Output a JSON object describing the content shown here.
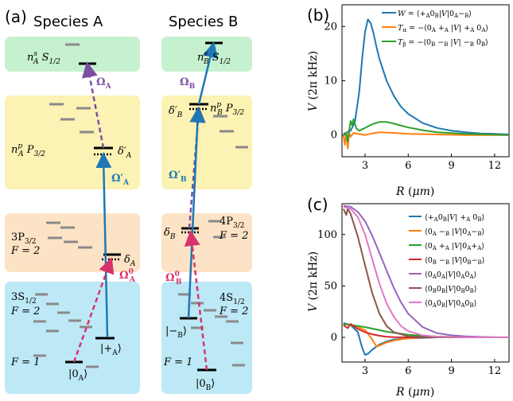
{
  "panel_labels": {
    "a": "(a)",
    "b": "(b)",
    "c": "(c)"
  },
  "species": {
    "A": {
      "title": "Species A",
      "rydberg_S": "n^s_A S_{1/2}",
      "rydberg_P": "n^p_A P_{3/2}",
      "p_state_line1": "3P_{3/2}",
      "p_state_line2": "F = 2",
      "s_state_line1": "3S_{1/2}",
      "s_state_line2": "F = 2",
      "f1_label": "F = 1",
      "ket_plus": "|+_A⟩",
      "ket_zero": "|0_A⟩",
      "omega_ryd": "Ω_A",
      "omega_prime": "Ω′_A",
      "omega_zero": "Ω^0_A",
      "delta_prime": "δ′_A",
      "delta": "δ_A",
      "colors": {
        "rydberg_S": "#c6f1cf",
        "rydberg_P": "#fbf2b3",
        "p_state": "#fde3c5",
        "s_state": "#bde8f5"
      }
    },
    "B": {
      "title": "Species B",
      "rydberg_S": "n^s_B S_{1/2}",
      "rydberg_P": "n^p_B P_{3/2}",
      "p_state_line1": "4P_{3/2}",
      "p_state_line2": "F = 2",
      "s_state_line1": "4S_{1/2}",
      "s_state_line2": "F = 2",
      "f1_label": "F = 1",
      "ket_minus": "|−_B⟩",
      "ket_zero": "|0_B⟩",
      "omega_ryd": "Ω_B",
      "omega_prime": "Ω′_B",
      "omega_zero": "Ω^0_B",
      "delta_prime": "δ′_B",
      "delta": "δ_B"
    }
  },
  "colors": {
    "blue": "#1f77b4",
    "purple": "#7b4fa3",
    "magenta": "#d6336c",
    "orange": "#ff7f0e",
    "green": "#2ca02c",
    "red": "#d62728",
    "violet": "#9467bd",
    "brown": "#8c564b",
    "pink": "#e377c2"
  },
  "chart_data": [
    {
      "panel": "(b)",
      "type": "line",
      "xlabel": "R (μm)",
      "ylabel": "V (2π kHz)",
      "xlim": [
        1.4,
        13
      ],
      "ylim": [
        -4,
        24
      ],
      "xticks": [
        "3",
        "6",
        "9",
        "12"
      ],
      "yticks": [
        "0",
        "10",
        "20"
      ],
      "legend": "top-right",
      "series": [
        {
          "name": "W = ⟨+_A0_B|V|0_A−_B⟩",
          "color": "#1f77b4",
          "x": [
            1.5,
            2.0,
            2.3,
            2.6,
            2.8,
            3.0,
            3.2,
            3.4,
            3.6,
            3.8,
            4.0,
            4.5,
            5.0,
            5.5,
            6.0,
            7.0,
            8.0,
            9.0,
            10.0,
            11.0,
            12.0,
            13.0
          ],
          "y": [
            0.2,
            0.8,
            2.5,
            8.0,
            14.0,
            19.0,
            21.3,
            20.6,
            18.6,
            16.2,
            14.0,
            10.0,
            7.2,
            5.2,
            3.9,
            2.2,
            1.3,
            0.8,
            0.5,
            0.3,
            0.2,
            0.1
          ]
        },
        {
          "name": "T_α = −⟨0_A +_A|V|+_A 0_A⟩",
          "color": "#ff7f0e",
          "x": [
            1.5,
            1.6,
            1.7,
            1.8,
            1.9,
            2.0,
            2.2,
            2.5,
            3.0,
            3.5,
            4.0,
            5.0,
            6.0,
            8.0,
            10.0,
            13.0
          ],
          "y": [
            0.0,
            -1.8,
            0.5,
            -2.5,
            0.4,
            -0.3,
            0.4,
            0.2,
            0.0,
            0.3,
            0.5,
            0.4,
            0.2,
            0.1,
            0.0,
            0.0
          ]
        },
        {
          "name": "T_β = −⟨0_B −_B|V|−_B 0_B⟩",
          "color": "#2ca02c",
          "x": [
            1.5,
            1.7,
            1.8,
            1.9,
            2.0,
            2.1,
            2.2,
            2.4,
            2.6,
            3.0,
            3.5,
            4.0,
            4.5,
            5.0,
            6.0,
            7.0,
            8.0,
            10.0,
            13.0
          ],
          "y": [
            0.0,
            0.3,
            -1.2,
            1.0,
            2.6,
            1.8,
            2.9,
            1.2,
            0.8,
            1.3,
            2.0,
            2.4,
            2.4,
            2.1,
            1.4,
            0.9,
            0.5,
            0.2,
            0.0
          ]
        }
      ]
    },
    {
      "panel": "(c)",
      "type": "line",
      "xlabel": "R (μm)",
      "ylabel": "V (2π kHz)",
      "xlim": [
        1.4,
        13
      ],
      "ylim": [
        -24,
        130
      ],
      "xticks": [
        "3",
        "6",
        "9",
        "12"
      ],
      "yticks": [
        "0",
        "50",
        "100"
      ],
      "legend": "top-right",
      "series": [
        {
          "name": "⟨+_A0_B|V|+_A0_B⟩",
          "color": "#1f77b4",
          "x": [
            1.5,
            2.0,
            2.5,
            2.8,
            3.0,
            3.2,
            3.5,
            4.0,
            4.5,
            5.0,
            6.0,
            7.0,
            8.0,
            10.0,
            13.0
          ],
          "y": [
            14,
            12,
            5,
            -10,
            -17,
            -16,
            -12,
            -7,
            -4,
            -2,
            -1,
            -0.5,
            0,
            0,
            0
          ]
        },
        {
          "name": "⟨0_A−_B|V|0_A−_B⟩",
          "color": "#ff7f0e",
          "x": [
            1.5,
            2.0,
            2.5,
            3.0,
            3.5,
            3.8,
            4.0,
            4.5,
            5.0,
            6.0,
            7.0,
            8.0,
            10.0,
            13.0
          ],
          "y": [
            13,
            12,
            10,
            7,
            -2,
            -9,
            -8,
            -5,
            -3,
            -1,
            0,
            0,
            0,
            0
          ]
        },
        {
          "name": "⟨0_A+_A|V|0_A+_A⟩",
          "color": "#2ca02c",
          "x": [
            1.5,
            2.0,
            2.5,
            3.0,
            3.5,
            4.0,
            4.5,
            5.0,
            6.0,
            7.0,
            8.0,
            10.0,
            13.0
          ],
          "y": [
            13,
            12,
            11,
            10,
            8.5,
            7,
            5.5,
            4.5,
            2.5,
            1.5,
            0.8,
            0.3,
            0.1
          ]
        },
        {
          "name": "⟨0_B−_B|V|0_B−_B⟩",
          "color": "#d62728",
          "x": [
            1.5,
            1.8,
            2.0,
            2.2,
            2.5,
            3.0,
            3.5,
            4.0,
            4.5,
            5.0,
            6.0,
            8.0,
            10.0,
            13.0
          ],
          "y": [
            12,
            9,
            13,
            11,
            8,
            5,
            3,
            1.5,
            0.5,
            0.2,
            0,
            0,
            0,
            0
          ]
        },
        {
          "name": "⟨0_A0_A|V|0_A0_A⟩",
          "color": "#9467bd",
          "x": [
            1.5,
            2.0,
            2.5,
            3.0,
            3.5,
            4.0,
            4.5,
            5.0,
            5.5,
            6.0,
            7.0,
            8.0,
            9.0,
            10.0,
            12.0,
            13.0
          ],
          "y": [
            128,
            127,
            122,
            113,
            99,
            82,
            65,
            48,
            34,
            23,
            10,
            4,
            2,
            1,
            0,
            0
          ]
        },
        {
          "name": "⟨0_B0_B|V|0_B0_B⟩",
          "color": "#8c564b",
          "x": [
            1.5,
            1.7,
            1.8,
            2.0,
            2.5,
            3.0,
            3.5,
            4.0,
            4.5,
            5.0,
            6.0,
            7.0,
            8.0,
            10.0,
            13.0
          ],
          "y": [
            125,
            119,
            125,
            120,
            98,
            70,
            43,
            23,
            11,
            5,
            1,
            0.3,
            0,
            0,
            0
          ]
        },
        {
          "name": "⟨0_A0_B|V|0_A0_B⟩",
          "color": "#e377c2",
          "x": [
            1.5,
            2.0,
            2.5,
            3.0,
            3.5,
            4.0,
            4.5,
            5.0,
            5.5,
            6.0,
            7.0,
            8.0,
            10.0,
            13.0
          ],
          "y": [
            127,
            125,
            117,
            100,
            76,
            52,
            33,
            20,
            11,
            6,
            2,
            0.5,
            0,
            0
          ]
        }
      ]
    }
  ]
}
